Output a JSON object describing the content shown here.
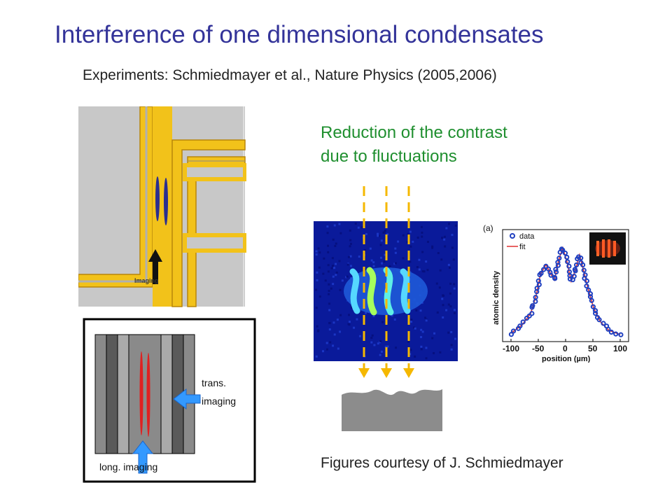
{
  "slide": {
    "title": "Interference of one dimensional condensates",
    "subtitle": "Experiments: Schmiedmayer et al., Nature Physics (2005,2006)",
    "reduction_line1": "Reduction of the contrast",
    "reduction_line2": "due to fluctuations",
    "credits": "Figures courtesy of J. Schmiedmayer"
  },
  "chip_figure": {
    "imaging_label": "Imaging"
  },
  "schematic": {
    "trans_label_1": "trans.",
    "trans_label_2": "imaging",
    "long_label": "long. imaging"
  },
  "plot": {
    "panel_label": "(a)",
    "ylabel": "atomic density",
    "xlabel": "position (µm)",
    "xticks": [
      "-100",
      "-50",
      "0",
      "50",
      "100"
    ],
    "legend_data": "data",
    "legend_fit": "fit"
  },
  "colors": {
    "title": "#333399",
    "reduction": "#1f8f2f",
    "wire_gold": "#f2c21a",
    "arrow_blue": "#3399ff",
    "dash": "#f5b800"
  }
}
